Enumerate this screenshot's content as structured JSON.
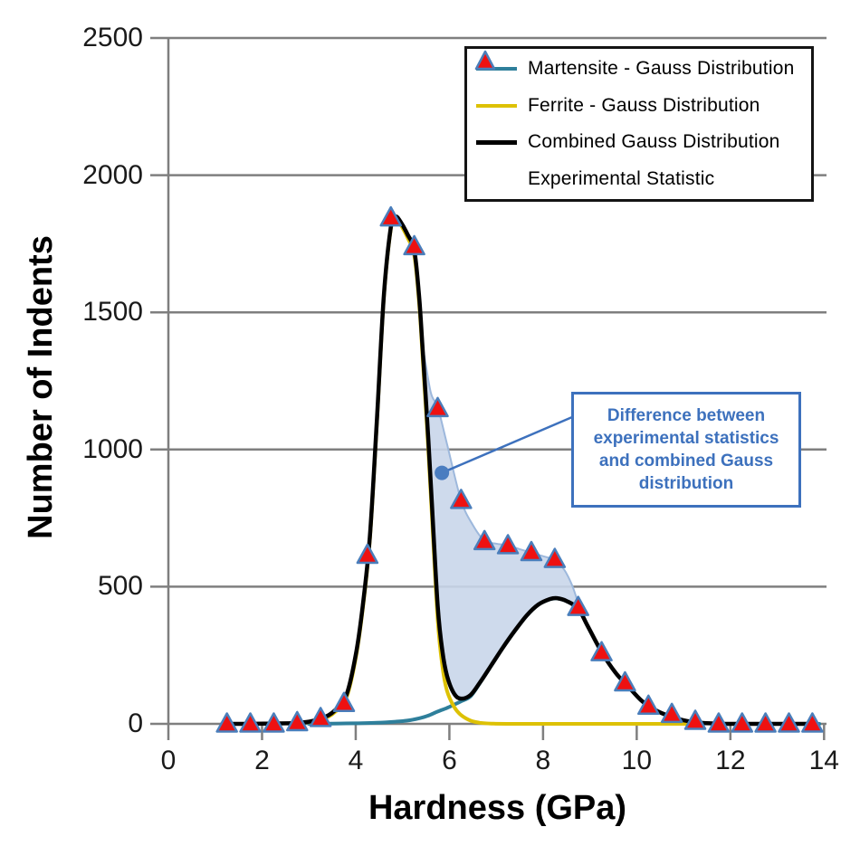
{
  "chart_data": {
    "type": "line",
    "title": "",
    "xlabel": "Hardness (GPa)",
    "ylabel": "Number of Indents",
    "xlim": [
      0,
      14
    ],
    "ylim": [
      0,
      2500
    ],
    "x_ticks": [
      0,
      2,
      4,
      6,
      8,
      10,
      12,
      14
    ],
    "y_ticks": [
      0,
      500,
      1000,
      1500,
      2000,
      2500
    ],
    "grid": "horizontal-only",
    "grid_color": "#7f7f7f",
    "legend_position": "top-right",
    "series": [
      {
        "name": "Martensite - Gauss Distribution",
        "type": "line",
        "color": "#2e7f9b",
        "points": [
          [
            3.0,
            0
          ],
          [
            3.5,
            1
          ],
          [
            4.0,
            2
          ],
          [
            4.45,
            4
          ],
          [
            4.85,
            8
          ],
          [
            5.1,
            12
          ],
          [
            5.35,
            20
          ],
          [
            5.55,
            30
          ],
          [
            5.75,
            45
          ],
          [
            5.95,
            58
          ],
          [
            6.1,
            70
          ],
          [
            6.25,
            82
          ],
          [
            6.45,
            100
          ],
          [
            6.65,
            148
          ],
          [
            6.9,
            214
          ],
          [
            7.15,
            279
          ],
          [
            7.4,
            339
          ],
          [
            7.65,
            394
          ],
          [
            7.9,
            434
          ],
          [
            8.15,
            454
          ],
          [
            8.3,
            457
          ],
          [
            8.5,
            447
          ],
          [
            8.75,
            419
          ],
          [
            8.95,
            357
          ],
          [
            9.25,
            261
          ],
          [
            9.55,
            185
          ],
          [
            9.8,
            139
          ],
          [
            10.1,
            84
          ],
          [
            10.4,
            49
          ],
          [
            10.7,
            27
          ],
          [
            11.0,
            12
          ],
          [
            11.35,
            4
          ],
          [
            11.7,
            1
          ],
          [
            12.1,
            0
          ],
          [
            13.0,
            0
          ],
          [
            13.9,
            0
          ]
        ]
      },
      {
        "name": "Ferrite - Gauss Distribution",
        "type": "line",
        "color": "#ddc104",
        "points": [
          [
            2.6,
            0
          ],
          [
            3.0,
            6
          ],
          [
            3.3,
            18
          ],
          [
            3.55,
            42
          ],
          [
            3.8,
            95
          ],
          [
            4.0,
            238
          ],
          [
            4.15,
            418
          ],
          [
            4.3,
            668
          ],
          [
            4.45,
            1088
          ],
          [
            4.6,
            1552
          ],
          [
            4.75,
            1802
          ],
          [
            4.85,
            1840
          ],
          [
            4.95,
            1822
          ],
          [
            5.1,
            1774
          ],
          [
            5.25,
            1708
          ],
          [
            5.35,
            1540
          ],
          [
            5.42,
            1360
          ],
          [
            5.55,
            1000
          ],
          [
            5.65,
            685
          ],
          [
            5.75,
            380
          ],
          [
            5.85,
            210
          ],
          [
            5.95,
            120
          ],
          [
            6.1,
            62
          ],
          [
            6.25,
            32
          ],
          [
            6.45,
            12
          ],
          [
            6.65,
            4
          ],
          [
            6.9,
            1
          ],
          [
            7.3,
            0
          ],
          [
            9.0,
            0
          ],
          [
            11.05,
            0
          ]
        ]
      },
      {
        "name": "Combined Gauss Distribution",
        "type": "line",
        "color": "#000000",
        "points": [
          [
            1.15,
            0
          ],
          [
            1.7,
            0
          ],
          [
            2.2,
            1
          ],
          [
            2.7,
            3
          ],
          [
            3.0,
            8
          ],
          [
            3.3,
            22
          ],
          [
            3.55,
            48
          ],
          [
            3.8,
            105
          ],
          [
            4.0,
            250
          ],
          [
            4.15,
            430
          ],
          [
            4.3,
            680
          ],
          [
            4.45,
            1100
          ],
          [
            4.6,
            1560
          ],
          [
            4.75,
            1810
          ],
          [
            4.85,
            1848
          ],
          [
            4.95,
            1832
          ],
          [
            5.1,
            1786
          ],
          [
            5.25,
            1726
          ],
          [
            5.35,
            1565
          ],
          [
            5.42,
            1390
          ],
          [
            5.55,
            1040
          ],
          [
            5.65,
            730
          ],
          [
            5.75,
            430
          ],
          [
            5.85,
            265
          ],
          [
            5.95,
            175
          ],
          [
            6.1,
            110
          ],
          [
            6.25,
            92
          ],
          [
            6.45,
            105
          ],
          [
            6.65,
            150
          ],
          [
            6.9,
            215
          ],
          [
            7.15,
            280
          ],
          [
            7.4,
            340
          ],
          [
            7.65,
            395
          ],
          [
            7.9,
            435
          ],
          [
            8.15,
            455
          ],
          [
            8.3,
            458
          ],
          [
            8.5,
            448
          ],
          [
            8.75,
            420
          ],
          [
            8.95,
            358
          ],
          [
            9.25,
            262
          ],
          [
            9.55,
            186
          ],
          [
            9.8,
            140
          ],
          [
            10.1,
            85
          ],
          [
            10.4,
            50
          ],
          [
            10.7,
            28
          ],
          [
            11.0,
            13
          ],
          [
            11.35,
            4
          ],
          [
            11.7,
            1
          ],
          [
            12.1,
            0
          ],
          [
            12.8,
            0
          ],
          [
            13.8,
            0
          ]
        ]
      },
      {
        "name": "Experimental Statistic",
        "type": "scatter",
        "marker": "triangle",
        "marker_fill": "#ee1111",
        "marker_edge": "#4a7ebb",
        "points": [
          [
            1.25,
            0
          ],
          [
            1.75,
            0
          ],
          [
            2.25,
            0
          ],
          [
            2.75,
            5
          ],
          [
            3.25,
            20
          ],
          [
            3.75,
            75
          ],
          [
            4.25,
            615
          ],
          [
            4.75,
            1845
          ],
          [
            5.25,
            1740
          ],
          [
            5.75,
            1150
          ],
          [
            6.25,
            815
          ],
          [
            6.75,
            665
          ],
          [
            7.25,
            650
          ],
          [
            7.75,
            625
          ],
          [
            8.25,
            600
          ],
          [
            8.75,
            425
          ],
          [
            9.25,
            260
          ],
          [
            9.75,
            150
          ],
          [
            10.25,
            65
          ],
          [
            10.75,
            35
          ],
          [
            11.25,
            10
          ],
          [
            11.75,
            0
          ],
          [
            12.25,
            0
          ],
          [
            12.75,
            0
          ],
          [
            13.25,
            0
          ],
          [
            13.75,
            0
          ]
        ]
      }
    ],
    "difference_region": {
      "fill": "#c9d6ea",
      "edge": "#9db8dc",
      "upper_boundary": [
        [
          5.42,
          1390
        ],
        [
          5.6,
          1210
        ],
        [
          5.75,
          1155
        ],
        [
          5.95,
          1020
        ],
        [
          6.25,
          815
        ],
        [
          6.5,
          725
        ],
        [
          6.75,
          668
        ],
        [
          7.0,
          657
        ],
        [
          7.25,
          650
        ],
        [
          7.5,
          637
        ],
        [
          7.75,
          624
        ],
        [
          8.0,
          611
        ],
        [
          8.25,
          597
        ],
        [
          8.45,
          562
        ],
        [
          8.62,
          505
        ],
        [
          8.75,
          440
        ],
        [
          8.82,
          408
        ]
      ],
      "lower_boundary": [
        [
          5.42,
          1390
        ],
        [
          5.55,
          1040
        ],
        [
          5.65,
          730
        ],
        [
          5.75,
          430
        ],
        [
          5.85,
          265
        ],
        [
          5.95,
          175
        ],
        [
          6.1,
          110
        ],
        [
          6.25,
          92
        ],
        [
          6.45,
          105
        ],
        [
          6.65,
          150
        ],
        [
          6.9,
          215
        ],
        [
          7.15,
          280
        ],
        [
          7.4,
          340
        ],
        [
          7.65,
          395
        ],
        [
          7.9,
          435
        ],
        [
          8.15,
          455
        ],
        [
          8.3,
          458
        ],
        [
          8.5,
          448
        ],
        [
          8.75,
          420
        ],
        [
          8.82,
          408
        ]
      ]
    },
    "annotation": {
      "lines": [
        "Difference between",
        "experimental statistics",
        "and combined Gauss",
        "distribution"
      ],
      "text_color": "#3d71bd",
      "border_color": "#3d71bd",
      "leader_color": "#3d71bd",
      "dot_point": [
        5.84,
        915
      ]
    }
  }
}
